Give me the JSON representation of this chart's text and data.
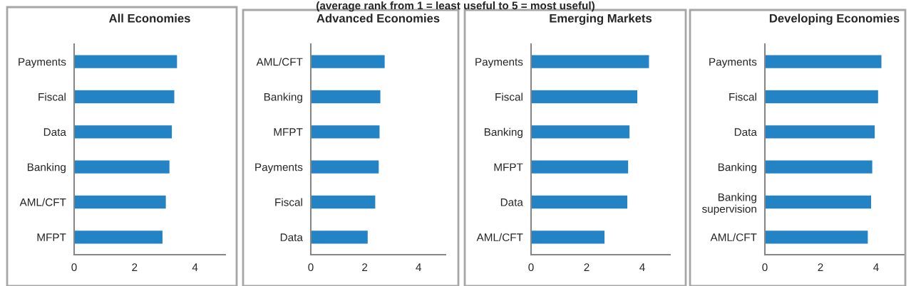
{
  "chart_data": [
    {
      "type": "bar",
      "orientation": "horizontal",
      "title": "All Economies",
      "annotations": [
        "(average rank from 1 = least useful to 5 = most useful)"
      ],
      "categories": [
        "Payments",
        "Fiscal",
        "Data",
        "Banking",
        "AML/CFT",
        "MFPT"
      ],
      "values": [
        3.42,
        3.33,
        3.25,
        3.17,
        3.05,
        2.94
      ],
      "color": "#2383c4",
      "xlim": [
        0,
        5
      ],
      "xticks": [
        0,
        2,
        4
      ],
      "grid": false,
      "legend": false
    },
    {
      "type": "bar",
      "orientation": "horizontal",
      "title": "Advanced Economies",
      "categories": [
        "AML/CFT",
        "Banking",
        "MFPT",
        "Payments",
        "Fiscal",
        "Data"
      ],
      "values": [
        2.76,
        2.6,
        2.57,
        2.54,
        2.41,
        2.13
      ],
      "color": "#2383c4",
      "xlim": [
        0,
        5
      ],
      "xticks": [
        0,
        2,
        4
      ],
      "grid": false,
      "legend": false
    },
    {
      "type": "bar",
      "orientation": "horizontal",
      "title": "Emerging Markets",
      "categories": [
        "Payments",
        "Fiscal",
        "Banking",
        "MFPT",
        "Data",
        "AML/CFT"
      ],
      "values": [
        4.26,
        3.84,
        3.56,
        3.51,
        3.48,
        2.66
      ],
      "color": "#2383c4",
      "xlim": [
        0,
        5
      ],
      "xticks": [
        0,
        2,
        4
      ],
      "grid": false,
      "legend": false
    },
    {
      "type": "bar",
      "orientation": "horizontal",
      "title": "Developing Economies",
      "categories": [
        "Payments",
        "Fiscal",
        "Data",
        "Banking",
        "Banking\nsupervision",
        "AML/CFT"
      ],
      "values": [
        4.21,
        4.09,
        3.97,
        3.88,
        3.84,
        3.72
      ],
      "color": "#2383c4",
      "xlim": [
        0,
        5
      ],
      "xticks": [
        0,
        2,
        4
      ],
      "grid": false,
      "legend": false
    }
  ]
}
